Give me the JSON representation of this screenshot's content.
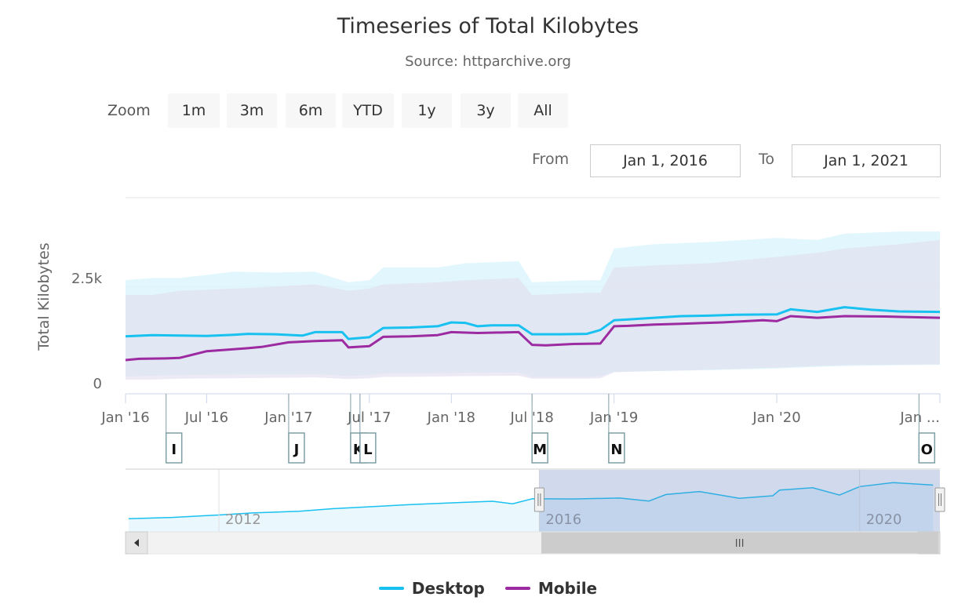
{
  "title": "Timeseries of Total Kilobytes",
  "subtitle": "Source: httparchive.org",
  "zoom": {
    "label": "Zoom",
    "buttons": [
      "1m",
      "3m",
      "6m",
      "YTD",
      "1y",
      "3y",
      "All"
    ]
  },
  "range": {
    "from_label": "From",
    "from_value": "Jan 1, 2016",
    "to_label": "To",
    "to_value": "Jan 1, 2021"
  },
  "colors": {
    "desktop": "#19c1f0",
    "mobile": "#9c2aa0",
    "desktop_band": "#dff6fd",
    "mobile_band": "#e3dcef"
  },
  "chart_data": {
    "type": "line",
    "title": "Timeseries of Total Kilobytes",
    "subtitle": "Source: httparchive.org",
    "ylabel": "Total Kilobytes",
    "ylim": [
      0,
      4600
    ],
    "yticks": [
      0,
      2500
    ],
    "ytick_labels": [
      "0",
      "2.5k"
    ],
    "xlim": [
      "2016-01-01",
      "2021-01-01"
    ],
    "xticks": [
      "2016-01-01",
      "2016-07-01",
      "2017-01-01",
      "2017-07-01",
      "2018-01-01",
      "2018-07-01",
      "2019-01-01",
      "2020-01-01",
      "2021-01-01"
    ],
    "xtick_labels": [
      "Jan '16",
      "Jul '16",
      "Jan '17",
      "Jul '17",
      "Jan '18",
      "Jul '18",
      "Jan '19",
      "Jan '20",
      "Jan ..."
    ],
    "legend_position": "bottom-center",
    "grid": true,
    "series": [
      {
        "name": "Desktop",
        "x": [
          "2016-01-01",
          "2016-03-01",
          "2016-05-01",
          "2016-07-01",
          "2016-09-01",
          "2016-10-01",
          "2016-12-01",
          "2017-02-01",
          "2017-03-01",
          "2017-05-01",
          "2017-05-15",
          "2017-07-01",
          "2017-08-01",
          "2017-10-01",
          "2017-12-01",
          "2018-01-01",
          "2018-02-01",
          "2018-03-01",
          "2018-04-01",
          "2018-06-01",
          "2018-07-01",
          "2018-09-01",
          "2018-11-01",
          "2018-12-01",
          "2019-01-01",
          "2019-02-01",
          "2019-04-01",
          "2019-06-01",
          "2019-08-01",
          "2019-10-01",
          "2020-01-01",
          "2020-02-01",
          "2020-04-01",
          "2020-06-01",
          "2020-08-01",
          "2020-10-01",
          "2021-01-01"
        ],
        "values": [
          1320,
          1350,
          1340,
          1330,
          1360,
          1380,
          1370,
          1340,
          1420,
          1420,
          1260,
          1300,
          1520,
          1530,
          1560,
          1650,
          1640,
          1560,
          1580,
          1580,
          1370,
          1370,
          1380,
          1470,
          1700,
          1720,
          1760,
          1800,
          1810,
          1830,
          1840,
          1960,
          1900,
          2010,
          1950,
          1910,
          1900
        ]
      },
      {
        "name": "Mobile",
        "x": [
          "2016-01-01",
          "2016-02-01",
          "2016-04-01",
          "2016-05-01",
          "2016-07-01",
          "2016-10-01",
          "2016-11-01",
          "2017-01-01",
          "2017-03-01",
          "2017-05-01",
          "2017-05-15",
          "2017-07-01",
          "2017-08-01",
          "2017-10-01",
          "2017-12-01",
          "2018-01-01",
          "2018-03-01",
          "2018-06-01",
          "2018-07-01",
          "2018-08-01",
          "2018-10-01",
          "2018-12-01",
          "2019-01-01",
          "2019-02-01",
          "2019-04-01",
          "2019-06-01",
          "2019-09-01",
          "2019-12-01",
          "2020-01-01",
          "2020-02-01",
          "2020-04-01",
          "2020-06-01",
          "2020-09-01",
          "2021-01-01"
        ],
        "values": [
          760,
          790,
          800,
          810,
          970,
          1040,
          1070,
          1180,
          1210,
          1230,
          1060,
          1090,
          1310,
          1320,
          1350,
          1420,
          1400,
          1420,
          1120,
          1110,
          1140,
          1150,
          1560,
          1570,
          1600,
          1620,
          1650,
          1700,
          1680,
          1800,
          1760,
          1800,
          1790,
          1760
        ]
      }
    ],
    "bands": [
      {
        "name": "Desktop range",
        "x": [
          "2016-01-01",
          "2016-03-01",
          "2016-05-01",
          "2016-09-01",
          "2016-12-01",
          "2017-03-01",
          "2017-05-15",
          "2017-07-01",
          "2017-08-01",
          "2017-12-01",
          "2018-02-01",
          "2018-06-01",
          "2018-07-01",
          "2018-11-01",
          "2018-12-01",
          "2019-01-01",
          "2019-04-01",
          "2019-08-01",
          "2020-01-01",
          "2020-04-01",
          "2020-06-01",
          "2020-10-01",
          "2021-01-01"
        ],
        "low": [
          370,
          390,
          400,
          420,
          420,
          430,
          380,
          400,
          440,
          450,
          460,
          470,
          360,
          360,
          380,
          480,
          500,
          520,
          560,
          600,
          620,
          640,
          650
        ],
        "high": [
          2650,
          2700,
          2700,
          2850,
          2830,
          2850,
          2600,
          2650,
          2950,
          2950,
          3050,
          3100,
          2600,
          2650,
          2650,
          3400,
          3500,
          3550,
          3650,
          3600,
          3750,
          3800,
          3800
        ]
      },
      {
        "name": "Mobile range",
        "x": [
          "2016-01-01",
          "2016-03-01",
          "2016-05-01",
          "2016-09-01",
          "2016-12-01",
          "2017-03-01",
          "2017-05-15",
          "2017-07-01",
          "2017-08-01",
          "2017-12-01",
          "2018-02-01",
          "2018-06-01",
          "2018-07-01",
          "2018-11-01",
          "2018-12-01",
          "2019-01-01",
          "2019-04-01",
          "2019-08-01",
          "2020-01-01",
          "2020-04-01",
          "2020-06-01",
          "2020-10-01",
          "2021-01-01"
        ],
        "low": [
          300,
          300,
          320,
          330,
          340,
          350,
          310,
          330,
          360,
          370,
          380,
          390,
          320,
          320,
          330,
          470,
          500,
          530,
          580,
          620,
          640,
          650,
          660
        ],
        "high": [
          2300,
          2300,
          2400,
          2450,
          2500,
          2550,
          2400,
          2450,
          2550,
          2600,
          2650,
          2700,
          2300,
          2350,
          2350,
          2950,
          3000,
          3050,
          3200,
          3300,
          3400,
          3500,
          3600
        ]
      }
    ],
    "flags": [
      {
        "date": "2016-04-01",
        "label": "I"
      },
      {
        "date": "2017-01-01",
        "label": "J"
      },
      {
        "date": "2017-05-20",
        "label": "K"
      },
      {
        "date": "2017-06-10",
        "label": "L"
      },
      {
        "date": "2018-07-01",
        "label": "M"
      },
      {
        "date": "2018-12-20",
        "label": "N"
      },
      {
        "date": "2020-11-15",
        "label": "O"
      }
    ],
    "navigator": {
      "xlim": [
        "2010-11-01",
        "2021-01-01"
      ],
      "xtick_labels": [
        "2012",
        "2016",
        "2020"
      ],
      "xticks": [
        "2012-01-01",
        "2016-01-01",
        "2020-01-01"
      ],
      "selected_range": [
        "2016-01-01",
        "2021-01-01"
      ],
      "series_name": "Desktop",
      "x": [
        "2010-11-15",
        "2011-06-01",
        "2012-01-01",
        "2012-06-01",
        "2013-01-01",
        "2013-06-01",
        "2014-01-01",
        "2014-06-01",
        "2015-01-01",
        "2015-06-01",
        "2015-09-01",
        "2015-12-01",
        "2016-06-01",
        "2017-01-01",
        "2017-05-15",
        "2017-08-01",
        "2018-01-01",
        "2018-07-01",
        "2018-12-01",
        "2019-01-01",
        "2019-06-01",
        "2019-10-01",
        "2020-01-01",
        "2020-06-01",
        "2020-12-01"
      ],
      "values": [
        550,
        600,
        700,
        780,
        850,
        950,
        1050,
        1120,
        1200,
        1250,
        1150,
        1350,
        1340,
        1380,
        1260,
        1520,
        1640,
        1370,
        1470,
        1700,
        1790,
        1500,
        1840,
        2000,
        1900
      ]
    }
  }
}
